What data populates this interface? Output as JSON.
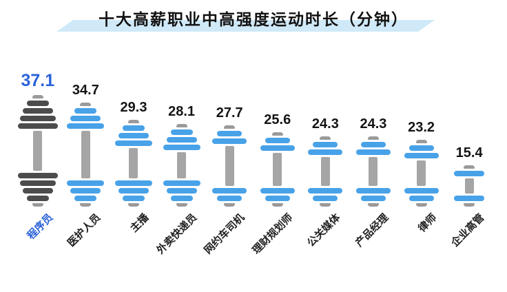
{
  "title": "十大高薪职业中高强度运动时长（分钟）",
  "colors": {
    "plate_blue": "#48a2e8",
    "plate_dark": "#4c4c4c",
    "bar_gray": "#a5a5a5",
    "cap_gray": "#9a9a9a",
    "value_dark": "#141414",
    "accent_blue": "#2a62d9",
    "title_band": "#cfe9f8",
    "title_text": "#121212",
    "label_dark": "#222222"
  },
  "chart_data": {
    "type": "bar",
    "style": "dumbbell-pictogram",
    "title": "十大高薪职业中高强度运动时长（分钟）",
    "unit": "分钟",
    "categories": [
      "程序员",
      "医护人员",
      "主播",
      "外卖快递员",
      "网约车司机",
      "理财规划师",
      "公关媒体",
      "产品经理",
      "律师",
      "企业高管"
    ],
    "values": [
      37.1,
      34.7,
      29.3,
      28.1,
      27.7,
      25.6,
      24.3,
      24.3,
      23.2,
      15.4
    ],
    "highlight_index": 0,
    "value_labels_shown": true,
    "legend": "none",
    "grid": "off",
    "xlabel": "",
    "ylabel": ""
  }
}
